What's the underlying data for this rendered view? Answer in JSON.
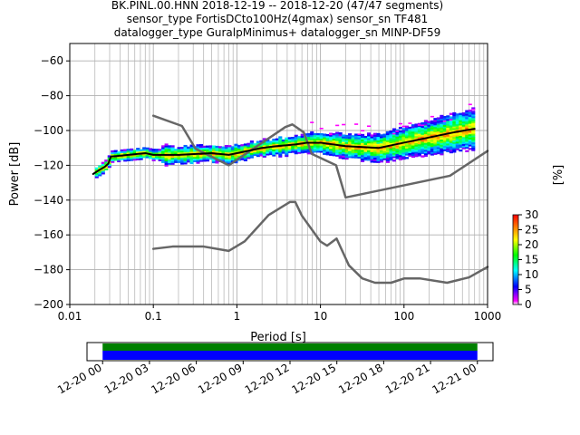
{
  "title_lines": [
    "BK.PINL.00.HNN   2018-12-19 -- 2018-12-20  (47/47 segments)",
    "sensor_type FortisDCto100Hz(4gmax) sensor_sn TF481",
    "datalogger_type GuralpMinimus+ datalogger_sn MINP-DF59"
  ],
  "chart_data": [
    {
      "type": "heatmap",
      "title": "",
      "xlabel": "Period [s]",
      "ylabel": "Power [dB]",
      "xscale": "log",
      "xlim": [
        0.01,
        1000
      ],
      "ylim": [
        -200,
        -50
      ],
      "grid": true,
      "x_ticks": [
        {
          "value": 0.01,
          "label": "0.01"
        },
        {
          "value": 0.1,
          "label": "0.1"
        },
        {
          "value": 1,
          "label": "1"
        },
        {
          "value": 10,
          "label": "10"
        },
        {
          "value": 100,
          "label": "100"
        },
        {
          "value": 1000,
          "label": "1000"
        }
      ],
      "y_ticks": [
        {
          "value": -60,
          "label": "−60"
        },
        {
          "value": -80,
          "label": "−80"
        },
        {
          "value": -100,
          "label": "−100"
        },
        {
          "value": -120,
          "label": "−120"
        },
        {
          "value": -140,
          "label": "−140"
        },
        {
          "value": -160,
          "label": "−160"
        },
        {
          "value": -180,
          "label": "−180"
        },
        {
          "value": -200,
          "label": "−200"
        }
      ],
      "colorbar": {
        "label": "[%]",
        "range": [
          0,
          30
        ],
        "ticks": [
          "0",
          "5",
          "10",
          "15",
          "20",
          "25",
          "30"
        ],
        "colormap": [
          "#ffffff",
          "#ff00ff",
          "#0000ff",
          "#00ffff",
          "#00ff00",
          "#ffff00",
          "#ff8000",
          "#ff0000"
        ]
      },
      "series": [
        {
          "color": "#000000",
          "style": "mode",
          "x": [
            0.019,
            0.022,
            0.026,
            0.029,
            0.031,
            0.05,
            0.08,
            0.1,
            0.2,
            0.5,
            0.8,
            1,
            2,
            3,
            5,
            7,
            10,
            20,
            50,
            100,
            200,
            400,
            700
          ],
          "y": [
            -125,
            -123,
            -121,
            -119,
            -115,
            -114,
            -113,
            -114,
            -114,
            -113,
            -114,
            -113,
            -110,
            -109,
            -108,
            -107,
            -107,
            -109,
            -110,
            -107,
            -104,
            -101,
            -99
          ]
        },
        {
          "color": "#666666",
          "style": "high noise model",
          "x": [
            0.1,
            0.22,
            0.32,
            0.8,
            3.8,
            4.6,
            6.3,
            7.9,
            15.4,
            20,
            354.8,
            10000
          ],
          "y": [
            -91.5,
            -97.4,
            -110.5,
            -120,
            -98,
            -96.5,
            -101,
            -113.5,
            -120,
            -138.5,
            -126,
            -80.1
          ]
        },
        {
          "color": "#666666",
          "style": "low noise model",
          "x": [
            0.1,
            0.17,
            0.4,
            0.8,
            1.24,
            2.4,
            4.3,
            5,
            6,
            10,
            12,
            15.6,
            21.9,
            31.6,
            45,
            70,
            101,
            154,
            328,
            600,
            10000
          ],
          "y": [
            -168,
            -166.7,
            -166.7,
            -169.2,
            -163.7,
            -148.6,
            -141.1,
            -141.1,
            -149,
            -163.8,
            -166.2,
            -162.1,
            -177.5,
            -185,
            -187.5,
            -187.5,
            -185,
            -185,
            -187.5,
            -184.4,
            -151.5
          ]
        }
      ]
    },
    {
      "type": "bar",
      "title": "",
      "xlabel": "",
      "ylabel": "",
      "x_range": [
        "12-19 23:00",
        "12-21 01:00"
      ],
      "x_ticks": [
        "12-20 00",
        "12-20 03",
        "12-20 06",
        "12-20 09",
        "12-20 12",
        "12-20 15",
        "12-20 18",
        "12-20 21",
        "12-21 00"
      ],
      "series": [
        {
          "color": "#008000",
          "start": "12-20 00:00",
          "end": "12-21 00:00"
        },
        {
          "color": "#0000ff",
          "start": "12-20 00:00",
          "end": "12-21 00:00"
        }
      ]
    }
  ]
}
